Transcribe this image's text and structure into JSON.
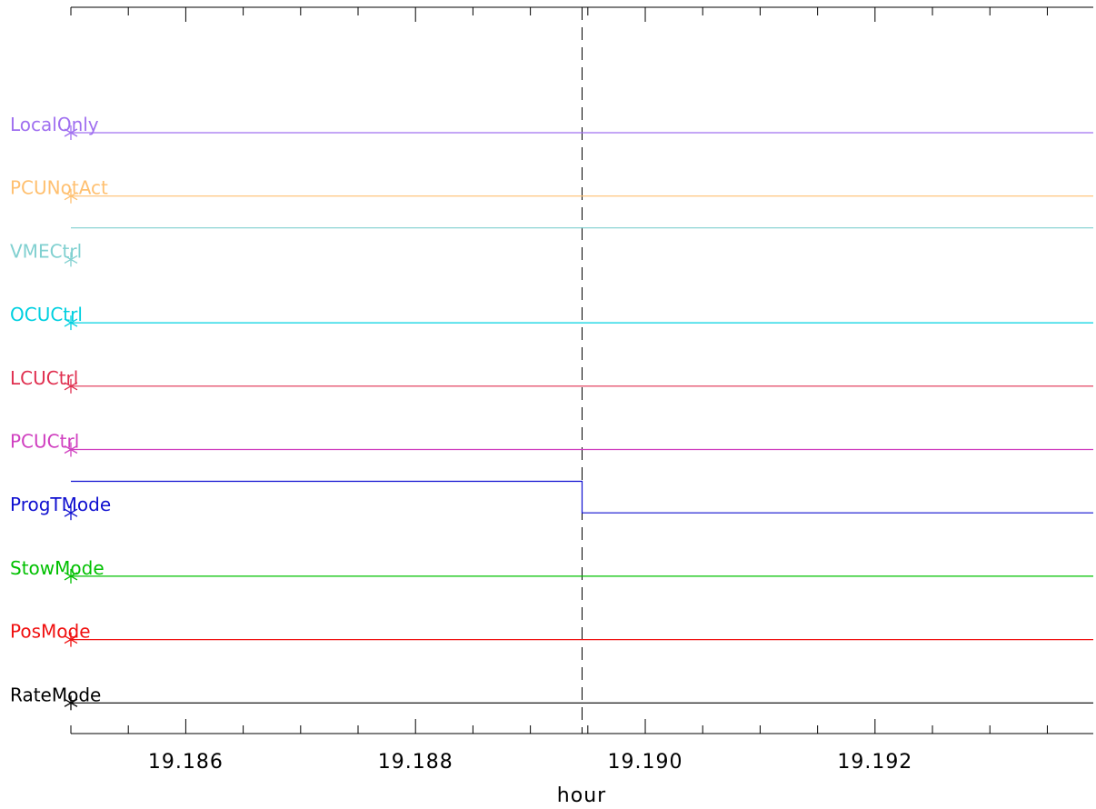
{
  "chart_data": {
    "type": "line",
    "title": "",
    "xlabel": "hour",
    "ylabel": "",
    "xlim": [
      19.185,
      19.1939
    ],
    "x_ticks": [
      "19.186",
      "19.188",
      "19.190",
      "19.192"
    ],
    "x_tick_values": [
      19.186,
      19.188,
      19.19,
      19.192
    ],
    "minor_tick_step": 0.0005,
    "grid": false,
    "marker_vline_x": 19.18945,
    "series": [
      {
        "name": "LocalOnly",
        "color": "#a070f0",
        "start": 19.185,
        "values": [
          [
            19.185,
            0
          ],
          [
            19.1939,
            0
          ]
        ]
      },
      {
        "name": "PCUNotAct",
        "color": "#ffc070",
        "start": 19.185,
        "values": [
          [
            19.185,
            0
          ],
          [
            19.1939,
            0
          ]
        ]
      },
      {
        "name": "VMECtrl",
        "color": "#80d0d0",
        "start": 19.185,
        "values": [
          [
            19.185,
            1
          ],
          [
            19.1939,
            1
          ]
        ]
      },
      {
        "name": "OCUCtrl",
        "color": "#00d0e0",
        "start": 19.185,
        "values": [
          [
            19.185,
            0
          ],
          [
            19.1939,
            0
          ]
        ]
      },
      {
        "name": "LCUCtrl",
        "color": "#e03050",
        "start": 19.185,
        "values": [
          [
            19.185,
            0
          ],
          [
            19.1939,
            0
          ]
        ]
      },
      {
        "name": "PCUCtrl",
        "color": "#d040c0",
        "start": 19.185,
        "values": [
          [
            19.185,
            0
          ],
          [
            19.1939,
            0
          ]
        ]
      },
      {
        "name": "ProgTMode",
        "color": "#1010d0",
        "start": 19.185,
        "values": [
          [
            19.185,
            1
          ],
          [
            19.18945,
            1
          ],
          [
            19.18945,
            0
          ],
          [
            19.1939,
            0
          ]
        ]
      },
      {
        "name": "StowMode",
        "color": "#00c000",
        "start": 19.185,
        "values": [
          [
            19.185,
            0
          ],
          [
            19.1939,
            0
          ]
        ]
      },
      {
        "name": "PosMode",
        "color": "#f01010",
        "start": 19.185,
        "values": [
          [
            19.185,
            0
          ],
          [
            19.1939,
            0
          ]
        ]
      },
      {
        "name": "RateMode",
        "color": "#000000",
        "start": 19.185,
        "values": [
          [
            19.185,
            0
          ],
          [
            19.1939,
            0
          ]
        ]
      }
    ]
  }
}
